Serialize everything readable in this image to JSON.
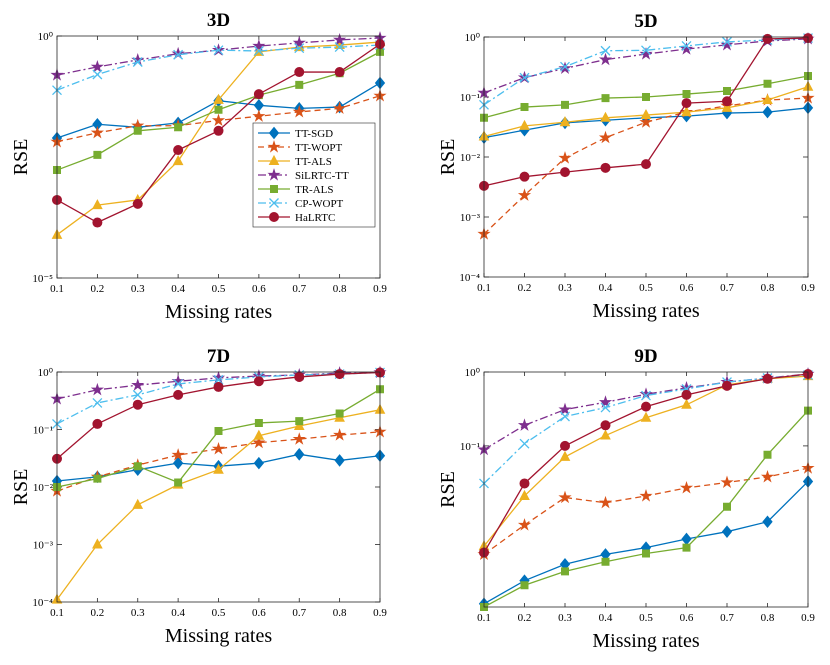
{
  "chart_data": [
    {
      "type": "line",
      "title": "3D",
      "xlabel": "Missing rates",
      "ylabel": "RSE",
      "log_y": true,
      "legend": "center right",
      "x": [
        0.1,
        0.2,
        0.3,
        0.4,
        0.5,
        0.6,
        0.7,
        0.8,
        0.9
      ],
      "xlim": [
        0.1,
        0.9
      ],
      "xticks": [
        0.1,
        0.2,
        0.3,
        0.4,
        0.5,
        0.6,
        0.7,
        0.8,
        0.9
      ],
      "ylim": [
        1e-05,
        1
      ],
      "yticks": [
        {
          "value": 1e-05,
          "label": "10⁻⁵"
        },
        {
          "value": 1,
          "label": "10⁰"
        }
      ],
      "series": [
        {
          "name": "TT-SGD",
          "color": "#0072BD",
          "marker": "diamond",
          "linestyle": "solid",
          "values": [
            0.0078,
            0.015,
            0.013,
            0.016,
            0.046,
            0.037,
            0.032,
            0.034,
            0.107
          ]
        },
        {
          "name": "TT-WOPT",
          "color": "#D95319",
          "marker": "star",
          "linestyle": "dashed",
          "values": [
            0.0065,
            0.01,
            0.014,
            0.014,
            0.018,
            0.022,
            0.027,
            0.032,
            0.058
          ]
        },
        {
          "name": "TT-ALS",
          "color": "#EDB120",
          "marker": "triangle",
          "linestyle": "solid",
          "values": [
            7.8e-05,
            0.00032,
            0.00041,
            0.0026,
            0.048,
            0.47,
            0.59,
            0.65,
            0.75
          ]
        },
        {
          "name": "SiLRTC-TT",
          "color": "#7E2F8E",
          "marker": "star",
          "linestyle": "dashdot",
          "values": [
            0.156,
            0.23,
            0.32,
            0.43,
            0.51,
            0.62,
            0.72,
            0.83,
            0.91
          ]
        },
        {
          "name": "TR-ALS",
          "color": "#77AC30",
          "marker": "square",
          "linestyle": "solid",
          "values": [
            0.0017,
            0.0035,
            0.011,
            0.013,
            0.03,
            0.06,
            0.098,
            0.17,
            0.47
          ]
        },
        {
          "name": "CP-WOPT",
          "color": "#4DBEEE",
          "marker": "x",
          "linestyle": "dashdot",
          "values": [
            0.076,
            0.16,
            0.29,
            0.41,
            0.51,
            0.49,
            0.56,
            0.59,
            0.65
          ]
        },
        {
          "name": "HaLRTC",
          "color": "#A2142F",
          "marker": "circle",
          "linestyle": "solid",
          "values": [
            0.00041,
            0.00014,
            0.00034,
            0.0044,
            0.011,
            0.063,
            0.18,
            0.18,
            0.68
          ]
        }
      ]
    },
    {
      "type": "line",
      "title": "5D",
      "xlabel": "Missing rates",
      "ylabel": "RSE",
      "log_y": true,
      "x": [
        0.1,
        0.2,
        0.3,
        0.4,
        0.5,
        0.6,
        0.7,
        0.8,
        0.9
      ],
      "xlim": [
        0.1,
        0.9
      ],
      "xticks": [
        0.1,
        0.2,
        0.3,
        0.4,
        0.5,
        0.6,
        0.7,
        0.8,
        0.9
      ],
      "ylim": [
        0.0001,
        1
      ],
      "yticks": [
        {
          "value": 0.0001,
          "label": "10⁻⁴"
        },
        {
          "value": 0.001,
          "label": "10⁻³"
        },
        {
          "value": 0.01,
          "label": "10⁻²"
        },
        {
          "value": 0.1,
          "label": "10⁻¹"
        },
        {
          "value": 1,
          "label": "10⁰"
        }
      ],
      "series": [
        {
          "color": "#0072BD",
          "marker": "diamond",
          "linestyle": "solid",
          "values": [
            0.021,
            0.028,
            0.037,
            0.041,
            0.045,
            0.048,
            0.054,
            0.056,
            0.066
          ]
        },
        {
          "color": "#D95319",
          "marker": "star",
          "linestyle": "dashed",
          "values": [
            0.00052,
            0.0023,
            0.0096,
            0.021,
            0.038,
            0.056,
            0.071,
            0.089,
            0.096
          ]
        },
        {
          "color": "#EDB120",
          "marker": "triangle",
          "linestyle": "solid",
          "values": [
            0.022,
            0.033,
            0.038,
            0.045,
            0.05,
            0.056,
            0.066,
            0.089,
            0.148
          ]
        },
        {
          "color": "#7E2F8E",
          "marker": "star",
          "linestyle": "dashdot",
          "values": [
            0.117,
            0.21,
            0.3,
            0.42,
            0.52,
            0.63,
            0.74,
            0.86,
            0.93
          ]
        },
        {
          "color": "#77AC30",
          "marker": "square",
          "linestyle": "solid",
          "values": [
            0.045,
            0.068,
            0.074,
            0.096,
            0.1,
            0.112,
            0.126,
            0.166,
            0.224
          ]
        },
        {
          "color": "#4DBEEE",
          "marker": "x",
          "linestyle": "dashdot",
          "values": [
            0.074,
            0.21,
            0.32,
            0.59,
            0.6,
            0.71,
            0.83,
            0.89,
            0.96
          ]
        },
        {
          "color": "#A2142F",
          "marker": "circle",
          "linestyle": "solid",
          "values": [
            0.0033,
            0.0047,
            0.0056,
            0.0066,
            0.0076,
            0.079,
            0.085,
            0.93,
            0.96
          ]
        }
      ]
    },
    {
      "type": "line",
      "title": "7D",
      "xlabel": "Missing rates",
      "ylabel": "RSE",
      "log_y": true,
      "x": [
        0.1,
        0.2,
        0.3,
        0.4,
        0.5,
        0.6,
        0.7,
        0.8,
        0.9
      ],
      "xlim": [
        0.1,
        0.9
      ],
      "xticks": [
        0.1,
        0.2,
        0.3,
        0.4,
        0.5,
        0.6,
        0.7,
        0.8,
        0.9
      ],
      "ylim": [
        0.0001,
        1
      ],
      "yticks": [
        {
          "value": 0.0001,
          "label": "10⁻⁴"
        },
        {
          "value": 0.001,
          "label": "10⁻³"
        },
        {
          "value": 0.01,
          "label": "10⁻²"
        },
        {
          "value": 0.1,
          "label": "10⁻¹"
        },
        {
          "value": 1,
          "label": "10⁰"
        }
      ],
      "series": [
        {
          "color": "#0072BD",
          "marker": "diamond",
          "linestyle": "solid",
          "values": [
            0.0127,
            0.015,
            0.02,
            0.026,
            0.023,
            0.026,
            0.037,
            0.029,
            0.035
          ]
        },
        {
          "color": "#D95319",
          "marker": "star",
          "linestyle": "dashed",
          "values": [
            0.0085,
            0.015,
            0.024,
            0.036,
            0.046,
            0.059,
            0.068,
            0.08,
            0.091
          ]
        },
        {
          "color": "#EDB120",
          "marker": "triangle",
          "linestyle": "solid",
          "values": [
            0.00011,
            0.001,
            0.0049,
            0.011,
            0.02,
            0.078,
            0.115,
            0.16,
            0.22
          ]
        },
        {
          "color": "#7E2F8E",
          "marker": "star",
          "linestyle": "dashdot",
          "values": [
            0.34,
            0.49,
            0.59,
            0.69,
            0.79,
            0.85,
            0.89,
            0.96,
            0.98
          ]
        },
        {
          "color": "#77AC30",
          "marker": "square",
          "linestyle": "solid",
          "values": [
            0.01,
            0.014,
            0.023,
            0.012,
            0.094,
            0.13,
            0.14,
            0.19,
            0.5
          ]
        },
        {
          "color": "#4DBEEE",
          "marker": "x",
          "linestyle": "dashdot",
          "values": [
            0.125,
            0.29,
            0.4,
            0.62,
            0.73,
            0.82,
            0.89,
            0.92,
            0.98
          ]
        },
        {
          "color": "#A2142F",
          "marker": "circle",
          "linestyle": "solid",
          "values": [
            0.031,
            0.125,
            0.27,
            0.4,
            0.55,
            0.69,
            0.82,
            0.92,
            0.98
          ]
        }
      ]
    },
    {
      "type": "line",
      "title": "9D",
      "xlabel": "Missing rates",
      "ylabel": "RSE",
      "log_y": true,
      "x": [
        0.1,
        0.2,
        0.3,
        0.4,
        0.5,
        0.6,
        0.7,
        0.8,
        0.9
      ],
      "xlim": [
        0.1,
        0.9
      ],
      "xticks": [
        0.1,
        0.2,
        0.3,
        0.4,
        0.5,
        0.6,
        0.7,
        0.8,
        0.9
      ],
      "ylim": [
        0.00066,
        1
      ],
      "yticks": [
        {
          "value": 0.1,
          "label": "10⁻¹"
        },
        {
          "value": 1,
          "label": "10⁰"
        }
      ],
      "series": [
        {
          "color": "#0072BD",
          "marker": "diamond",
          "linestyle": "solid",
          "values": [
            0.00073,
            0.0015,
            0.0025,
            0.0034,
            0.0042,
            0.0055,
            0.0069,
            0.0094,
            0.033
          ]
        },
        {
          "color": "#D95319",
          "marker": "star",
          "linestyle": "dashed",
          "values": [
            0.0034,
            0.0085,
            0.02,
            0.017,
            0.021,
            0.027,
            0.032,
            0.038,
            0.05
          ]
        },
        {
          "color": "#EDB120",
          "marker": "triangle",
          "linestyle": "solid",
          "values": [
            0.0044,
            0.021,
            0.071,
            0.138,
            0.24,
            0.36,
            0.67,
            0.81,
            0.88
          ]
        },
        {
          "color": "#7E2F8E",
          "marker": "star",
          "linestyle": "dashdot",
          "values": [
            0.089,
            0.19,
            0.31,
            0.39,
            0.5,
            0.61,
            0.73,
            0.83,
            0.94
          ]
        },
        {
          "color": "#77AC30",
          "marker": "square",
          "linestyle": "solid",
          "values": [
            0.00066,
            0.0013,
            0.002,
            0.0027,
            0.0035,
            0.0042,
            0.015,
            0.076,
            0.3
          ]
        },
        {
          "color": "#4DBEEE",
          "marker": "x",
          "linestyle": "dashdot",
          "values": [
            0.031,
            0.107,
            0.25,
            0.33,
            0.48,
            0.59,
            0.73,
            0.83,
            0.91
          ]
        },
        {
          "color": "#A2142F",
          "marker": "circle",
          "linestyle": "solid",
          "values": [
            0.0036,
            0.031,
            0.1,
            0.19,
            0.34,
            0.49,
            0.65,
            0.81,
            0.94
          ]
        }
      ]
    }
  ]
}
